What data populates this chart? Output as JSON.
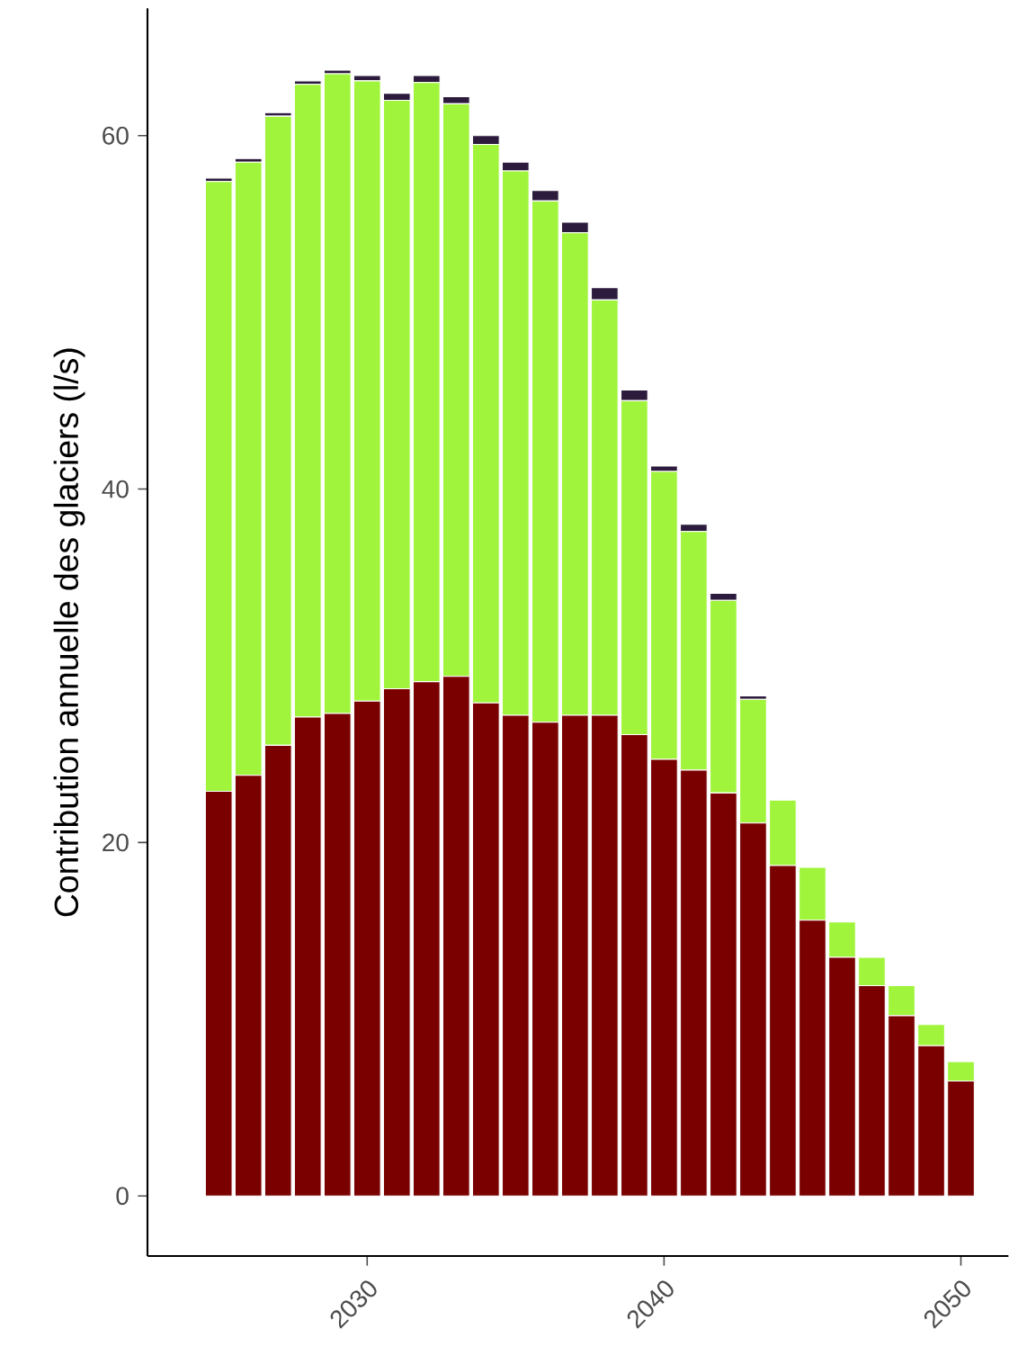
{
  "chart_data": {
    "type": "bar",
    "stacked": true,
    "ylabel": "Contribution annuelle des glaciers (l/s)",
    "x": [
      2025,
      2026,
      2027,
      2028,
      2029,
      2030,
      2031,
      2032,
      2033,
      2034,
      2035,
      2036,
      2037,
      2038,
      2039,
      2040,
      2041,
      2042,
      2043,
      2044,
      2045,
      2046,
      2047,
      2048,
      2049,
      2050
    ],
    "series": [
      {
        "color": "#7a0000",
        "values": [
          22.9,
          23.8,
          25.5,
          27.1,
          27.3,
          28.0,
          28.7,
          29.1,
          29.4,
          27.9,
          27.2,
          26.8,
          27.2,
          27.2,
          26.1,
          24.7,
          24.1,
          22.8,
          21.1,
          18.7,
          15.6,
          13.5,
          11.9,
          10.2,
          8.5,
          6.5
        ]
      },
      {
        "color": "#a0f53c",
        "values": [
          34.5,
          34.7,
          35.6,
          35.8,
          36.2,
          35.1,
          33.3,
          33.9,
          32.4,
          31.6,
          30.8,
          29.5,
          27.3,
          23.5,
          18.9,
          16.3,
          13.5,
          10.9,
          7.0,
          3.7,
          3.0,
          2.0,
          1.6,
          1.7,
          1.2,
          1.1
        ]
      },
      {
        "color": "#2d1b3d",
        "values": [
          0.2,
          0.2,
          0.2,
          0.2,
          0.2,
          0.3,
          0.4,
          0.4,
          0.4,
          0.5,
          0.5,
          0.6,
          0.6,
          0.7,
          0.6,
          0.3,
          0.4,
          0.4,
          0.2,
          0,
          0,
          0,
          0,
          0,
          0,
          0
        ]
      }
    ],
    "xlim": [
      2022.6,
      2051.6
    ],
    "ylim": [
      -3.4,
      67.2
    ],
    "xticks": [
      2030,
      2040,
      2050
    ],
    "yticks": [
      0,
      20,
      40,
      60
    ]
  }
}
